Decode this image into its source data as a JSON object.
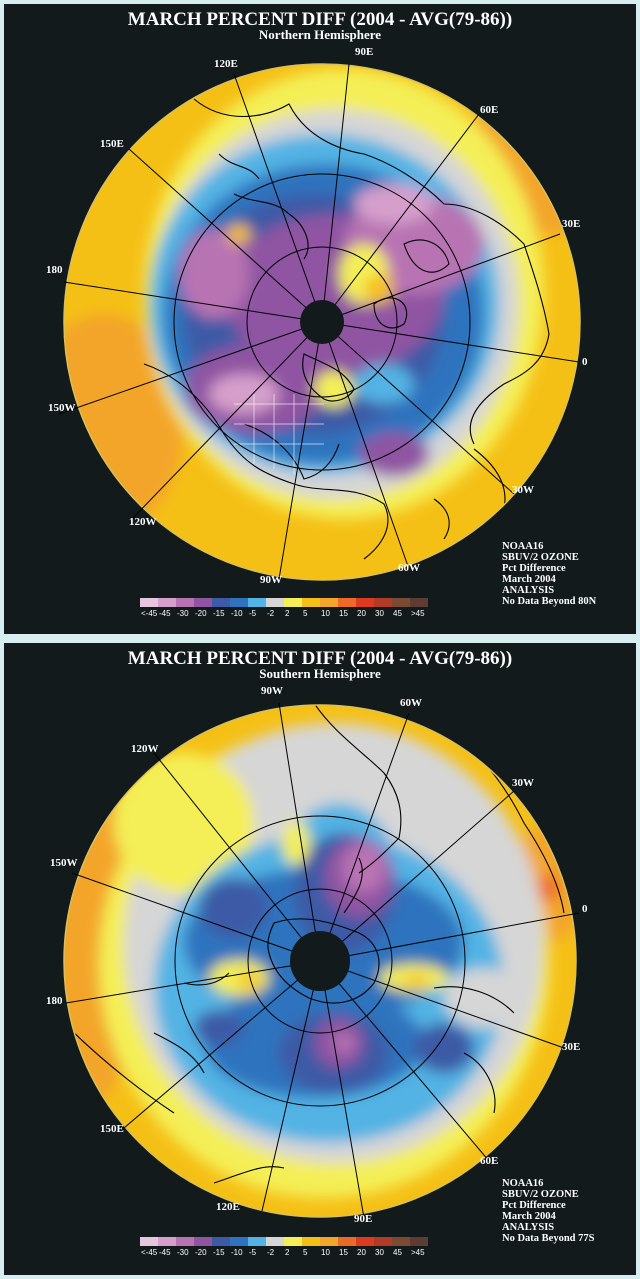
{
  "colors": {
    "background": "#121a1c",
    "border": "#d6eef0",
    "coast": "#000000",
    "scale": [
      "#e6c5df",
      "#d59fcb",
      "#b873b2",
      "#8f55a2",
      "#3d5aa6",
      "#2f73be",
      "#52b3e4",
      "#d6d6d6",
      "#f4ef57",
      "#f5c016",
      "#f3a52a",
      "#ed6a26",
      "#dd3a22",
      "#b23a26",
      "#7a4a34",
      "#5d3c33"
    ]
  },
  "scale_labels": [
    "<-45",
    "-45",
    "-30",
    "-20",
    "-15",
    "-10",
    "-5",
    "-2",
    "2",
    "5",
    "10",
    "15",
    "20",
    "30",
    "45",
    ">45"
  ],
  "panels": [
    {
      "title": "MARCH PERCENT DIFF (2004 - AVG(79-86))",
      "subtitle": "Northern Hemisphere",
      "lon_labels": [
        "90E",
        "120E",
        "60E",
        "150E",
        "30E",
        "180",
        "0",
        "150W",
        "30W",
        "120W",
        "60W",
        "90W"
      ],
      "info": [
        "NOAA16",
        "SBUV/2 OZONE",
        "Pct Difference",
        "March 2004",
        "ANALYSIS",
        "No Data Beyond 80N"
      ]
    },
    {
      "title": "MARCH PERCENT DIFF (2004 - AVG(79-86))",
      "subtitle": "Southern Hemisphere",
      "lon_labels": [
        "90W",
        "60W",
        "120W",
        "30W",
        "150W",
        "0",
        "180",
        "30E",
        "150E",
        "60E",
        "120E",
        "90E"
      ],
      "info": [
        "NOAA16",
        "SBUV/2 OZONE",
        "Pct Difference",
        "March 2004",
        "ANALYSIS",
        "No Data Beyond 77S"
      ]
    }
  ]
}
